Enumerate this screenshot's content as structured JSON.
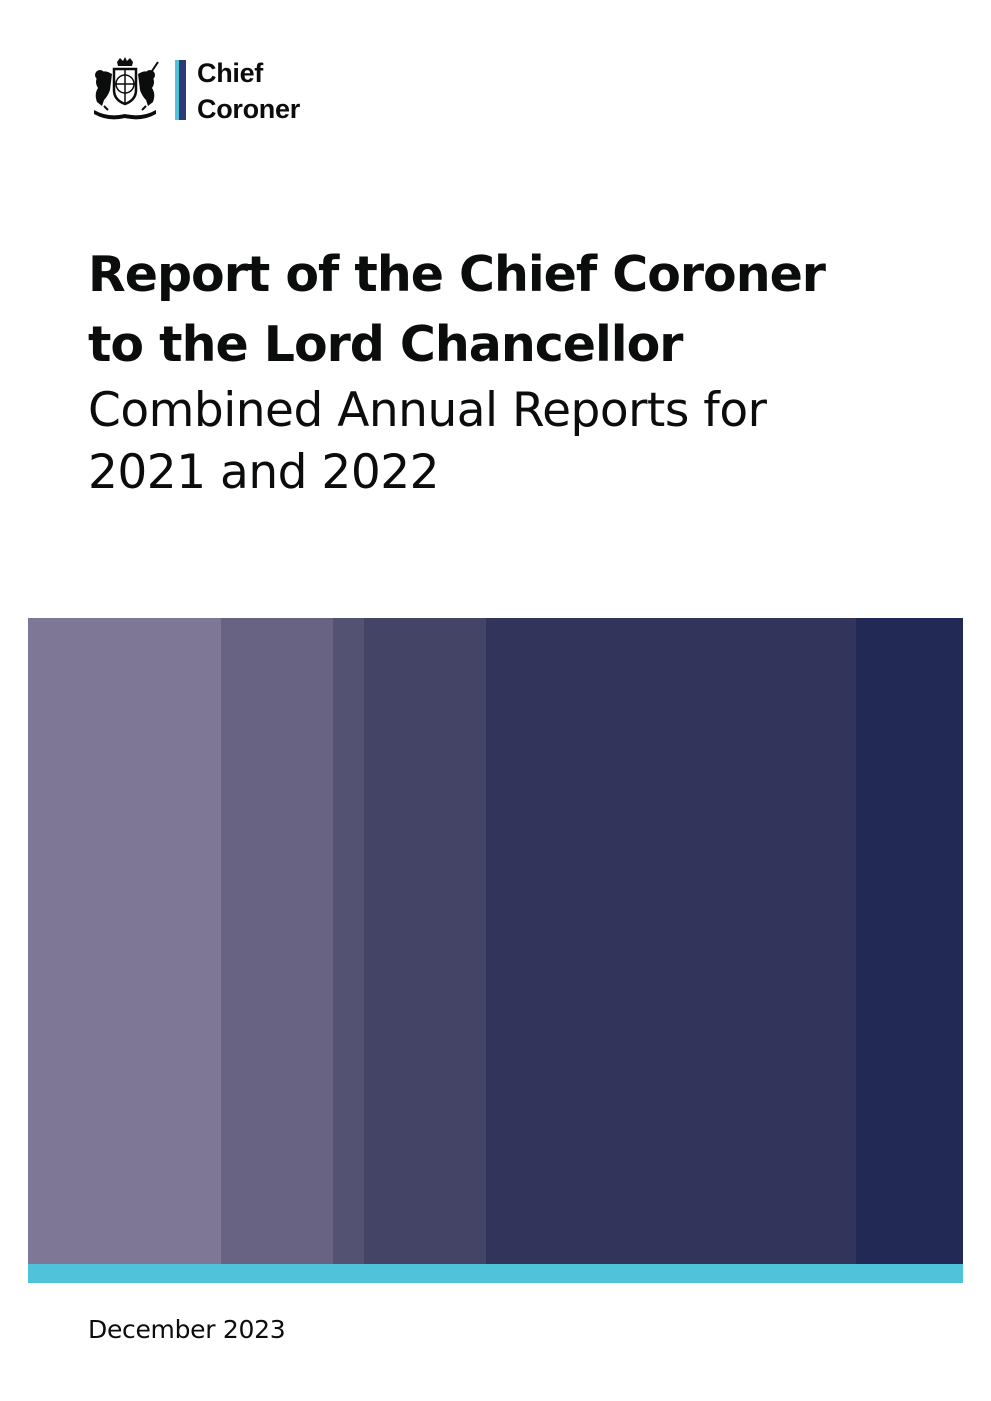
{
  "logo": {
    "crest": "royal-coat-of-arms",
    "line1": "Chief",
    "line2": "Coroner",
    "bar_color": "#2e3a78",
    "bar_accent_color": "#4fc3d9"
  },
  "title": {
    "line1": "Report of the Chief Coroner",
    "line2": "to the Lord Chancellor"
  },
  "subtitle": {
    "line1": "Combined Annual Reports for",
    "line2": "2021 and 2022"
  },
  "colors": {
    "stripes": [
      "#7e7896",
      "#686382",
      "#545273",
      "#434466",
      "#33345c",
      "#33345c",
      "#232955"
    ],
    "accent": "#4fc3d9"
  },
  "date": "December 2023"
}
